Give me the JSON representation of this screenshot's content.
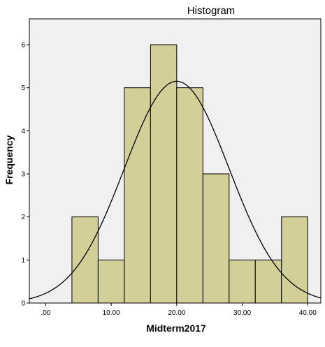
{
  "chart_data": {
    "type": "bar",
    "title": "Histogram",
    "xlabel": "Midterm2017",
    "ylabel": "Frequency",
    "bins": [
      {
        "start": 4,
        "end": 8,
        "count": 2
      },
      {
        "start": 8,
        "end": 12,
        "count": 1
      },
      {
        "start": 12,
        "end": 16,
        "count": 5
      },
      {
        "start": 16,
        "end": 20,
        "count": 6
      },
      {
        "start": 20,
        "end": 24,
        "count": 5
      },
      {
        "start": 24,
        "end": 28,
        "count": 3
      },
      {
        "start": 28,
        "end": 32,
        "count": 1
      },
      {
        "start": 32,
        "end": 36,
        "count": 1
      },
      {
        "start": 36,
        "end": 40,
        "count": 2
      }
    ],
    "normal_curve": {
      "mean": 20.0,
      "peak": 5.15,
      "sd": 8.0
    },
    "xlim": [
      -2.5,
      42.0
    ],
    "ylim": [
      0,
      6.6
    ],
    "xticks": [
      0,
      10,
      20,
      30,
      40
    ],
    "xtick_labels": [
      ".00",
      "10.00",
      "20.00",
      "30.00",
      "40.00"
    ],
    "yticks": [
      0,
      1,
      2,
      3,
      4,
      5,
      6
    ],
    "ytick_labels": [
      "0",
      "1",
      "2",
      "3",
      "4",
      "5",
      "6"
    ],
    "colors": {
      "bar_fill": "#d3cf98",
      "bar_stroke": "#000000",
      "plot_bg": "#f0f0f0",
      "curve": "#000000"
    }
  }
}
